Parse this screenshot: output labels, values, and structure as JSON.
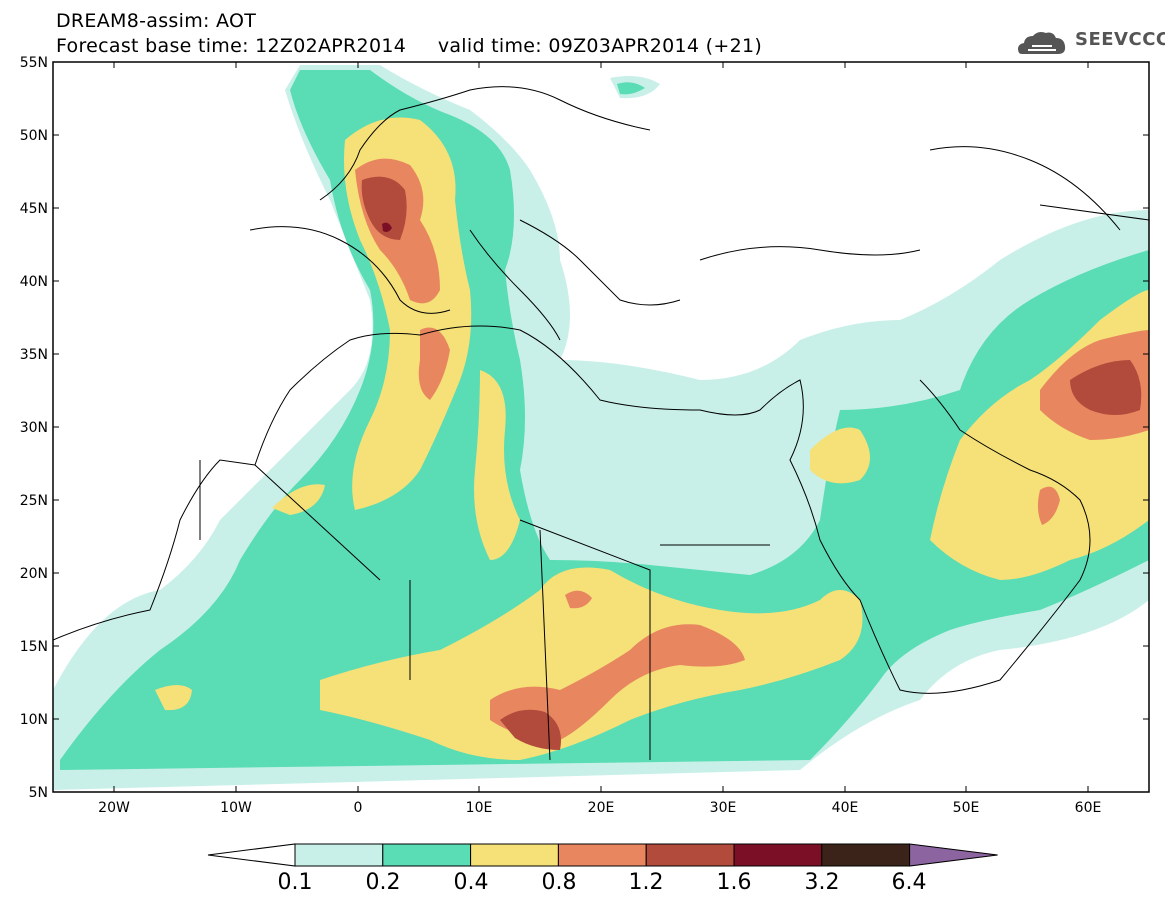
{
  "header": {
    "title_line1": "DREAM8-assim: AOT",
    "title_line2": "Forecast base time: 12Z02APR2014     valid time: 09Z03APR2014 (+21)",
    "logo_text": "SEEVCCC"
  },
  "map": {
    "lat_labels": [
      "55N",
      "50N",
      "45N",
      "40N",
      "35N",
      "30N",
      "25N",
      "20N",
      "15N",
      "10N",
      "5N"
    ],
    "lon_labels": [
      "20W",
      "10W",
      "0",
      "10E",
      "20E",
      "30E",
      "40E",
      "50E",
      "60E"
    ],
    "lon_range": [
      -25,
      65
    ],
    "lat_range": [
      5,
      55
    ],
    "field": "Aerosol optical thickness"
  },
  "colorbar": {
    "levels": [
      "0.1",
      "0.2",
      "0.4",
      "0.8",
      "1.2",
      "1.6",
      "3.2",
      "6.4"
    ],
    "colors": [
      "#ffffff",
      "#c8f0e8",
      "#5adcb4",
      "#f5e178",
      "#e8875f",
      "#b24b3c",
      "#7a0f26",
      "#3c2319",
      "#8c64a0"
    ]
  }
}
